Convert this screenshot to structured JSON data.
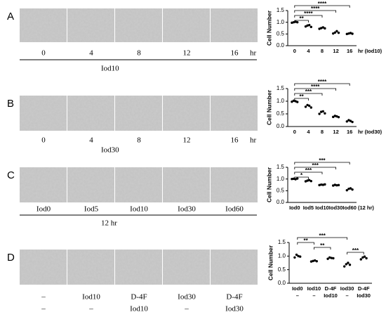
{
  "figure": {
    "panels": [
      {
        "label": "A",
        "image_labels": [
          "0",
          "4",
          "8",
          "12",
          "16"
        ],
        "unit": "hr",
        "captions": [
          "Iod10"
        ]
      },
      {
        "label": "B",
        "image_labels": [
          "0",
          "4",
          "8",
          "12",
          "16"
        ],
        "unit": "hr",
        "captions": [
          "Iod30"
        ]
      },
      {
        "label": "C",
        "image_labels": [
          "Iod0",
          "Iod5",
          "Iod10",
          "Iod30",
          "Iod60"
        ],
        "captions": [
          "12 hr"
        ]
      },
      {
        "label": "D",
        "image_labels": [
          "–",
          "Iod10",
          "D-4F",
          "Iod30",
          "D-4F"
        ],
        "image_labels_2": [
          "–",
          "–",
          "Iod10",
          "–",
          "Iod30"
        ]
      }
    ]
  },
  "chart_data": [
    {
      "type": "dotplot",
      "ylabel": "Cell Number",
      "xlabel": "hr (Iod10)",
      "color": "#000000",
      "categories": [
        "0",
        "4",
        "8",
        "12",
        "16"
      ],
      "values": [
        [
          0.98,
          1.0,
          1.02,
          1.0
        ],
        [
          0.82,
          0.86,
          0.88,
          0.8
        ],
        [
          0.72,
          0.75,
          0.78,
          0.74
        ],
        [
          0.52,
          0.56,
          0.62,
          0.55
        ],
        [
          0.5,
          0.52,
          0.54,
          0.51
        ]
      ],
      "ylim": [
        0,
        1.5
      ],
      "yticks": [
        {
          "value": 0,
          "label": "0.0"
        },
        {
          "value": 0.5,
          "label": "0.5"
        },
        {
          "value": 1,
          "label": "1.0"
        },
        {
          "value": 1.5,
          "label": "1.5"
        }
      ],
      "significance": [
        {
          "from": 0,
          "to": 4,
          "label": "****"
        },
        {
          "from": 0,
          "to": 3,
          "label": "****"
        },
        {
          "from": 0,
          "to": 2,
          "label": "****"
        },
        {
          "from": 0,
          "to": 1,
          "label": "**"
        }
      ]
    },
    {
      "type": "dotplot",
      "ylabel": "Cell Number",
      "xlabel": "hr (Iod30)",
      "color": "#000000",
      "categories": [
        "0",
        "4",
        "8",
        "12",
        "16"
      ],
      "values": [
        [
          0.98,
          1.02,
          1.0,
          0.97
        ],
        [
          0.78,
          0.85,
          0.82,
          0.75
        ],
        [
          0.5,
          0.58,
          0.6,
          0.52
        ],
        [
          0.38,
          0.42,
          0.4,
          0.37
        ],
        [
          0.2,
          0.25,
          0.22,
          0.18
        ]
      ],
      "ylim": [
        0,
        1.5
      ],
      "yticks": [
        {
          "value": 0,
          "label": "0.0"
        },
        {
          "value": 0.5,
          "label": "0.5"
        },
        {
          "value": 1,
          "label": "1.0"
        },
        {
          "value": 1.5,
          "label": "1.5"
        }
      ],
      "significance": [
        {
          "from": 0,
          "to": 4,
          "label": "****"
        },
        {
          "from": 0,
          "to": 3,
          "label": "****"
        },
        {
          "from": 0,
          "to": 2,
          "label": "***"
        },
        {
          "from": 0,
          "to": 1,
          "label": "**"
        }
      ]
    },
    {
      "type": "dotplot",
      "ylabel": "Cell Number",
      "xlabel": "(12 hr)",
      "color": "#000000",
      "categories": [
        "Iod0",
        "Iod5",
        "Iod10",
        "Iod30",
        "Iod60"
      ],
      "values": [
        [
          1.0,
          1.01,
          0.99,
          1.02
        ],
        [
          0.9,
          0.93,
          0.95,
          0.91
        ],
        [
          0.74,
          0.76,
          0.75,
          0.77
        ],
        [
          0.72,
          0.75,
          0.73,
          0.74
        ],
        [
          0.52,
          0.58,
          0.6,
          0.55
        ]
      ],
      "ylim": [
        0,
        1.5
      ],
      "yticks": [
        {
          "value": 0,
          "label": "0.0"
        },
        {
          "value": 0.5,
          "label": "0.5"
        },
        {
          "value": 1,
          "label": "1.0"
        },
        {
          "value": 1.5,
          "label": "1.5"
        }
      ],
      "significance": [
        {
          "from": 0,
          "to": 4,
          "label": "***"
        },
        {
          "from": 0,
          "to": 3,
          "label": "***"
        },
        {
          "from": 0,
          "to": 2,
          "label": "***"
        },
        {
          "from": 0,
          "to": 1,
          "label": "*"
        }
      ]
    },
    {
      "type": "dotplot",
      "ylabel": "Cell Number",
      "color": "#000000",
      "categories": [
        [
          "Iod0",
          "–"
        ],
        [
          "Iod10",
          "–"
        ],
        [
          "D-4F",
          "Iod10"
        ],
        [
          "Iod30",
          "–"
        ],
        [
          "D-4F",
          "Iod30"
        ]
      ],
      "values": [
        [
          0.95,
          1.05,
          1.0,
          0.98
        ],
        [
          0.8,
          0.82,
          0.84,
          0.81
        ],
        [
          0.9,
          0.95,
          0.93,
          0.92
        ],
        [
          0.62,
          0.7,
          0.75,
          0.68
        ],
        [
          0.88,
          0.95,
          0.98,
          0.92
        ]
      ],
      "ylim": [
        0,
        1.5
      ],
      "yticks": [
        {
          "value": 0,
          "label": "0.0"
        },
        {
          "value": 0.5,
          "label": "0.5"
        },
        {
          "value": 1,
          "label": "1.0"
        },
        {
          "value": 1.5,
          "label": "1.5"
        }
      ],
      "significance": [
        {
          "from": 0,
          "to": 3,
          "label": "***"
        },
        {
          "from": 0,
          "to": 1,
          "label": "**"
        },
        {
          "from": 1,
          "to": 2,
          "label": "**"
        },
        {
          "from": 3,
          "to": 4,
          "label": "***"
        }
      ]
    }
  ]
}
